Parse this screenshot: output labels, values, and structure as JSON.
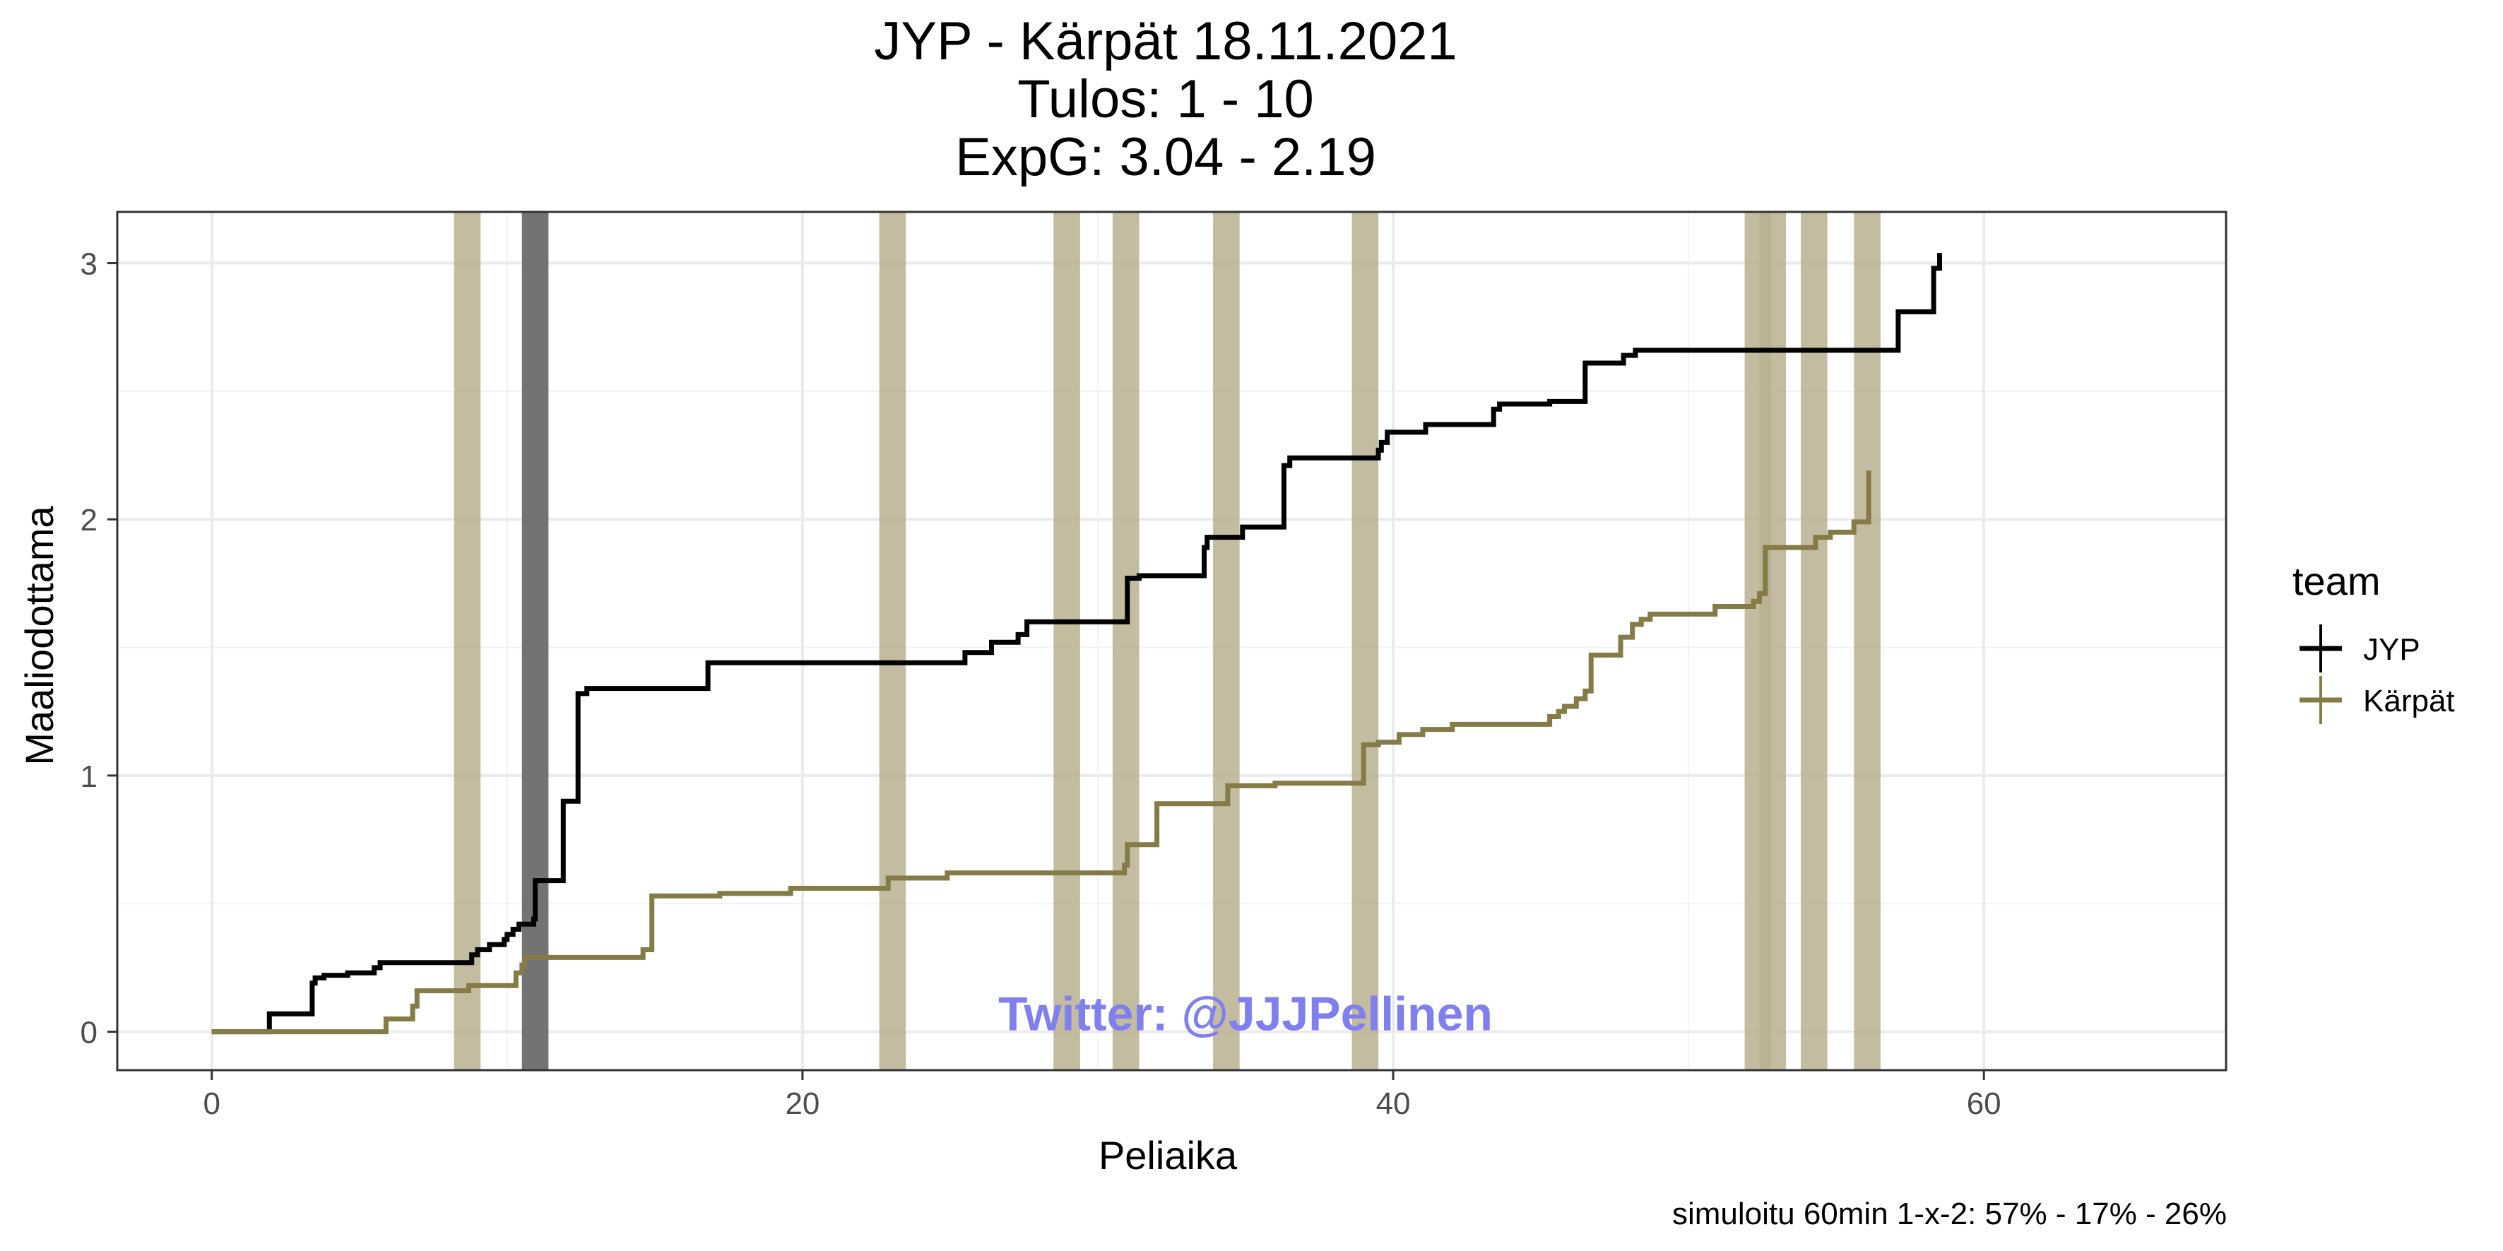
{
  "chart_data": {
    "type": "line",
    "step": true,
    "title": [
      "JYP - Kärpät 18.11.2021",
      "Tulos: 1 - 10",
      "ExpG: 3.04 - 2.19"
    ],
    "xlabel": "Peliaika",
    "ylabel": "Maaliodottama",
    "xlim": [
      -3.2,
      68.2
    ],
    "ylim": [
      -0.15,
      3.2
    ],
    "xticks": [
      0,
      20,
      40,
      60
    ],
    "yticks": [
      0,
      1,
      2,
      3
    ],
    "grid": true,
    "legend_title": "team",
    "legend_position": "right",
    "caption": "simuloitu 60min 1-x-2:  57% - 17% - 26%",
    "watermark": "Twitter: @JJJPellinen",
    "colors": {
      "JYP": "#000000",
      "Kärpät": "#857b46",
      "band_karpat": "#b8b08f",
      "band_jyp": "#6b6b6b",
      "watermark": "#7f7ff0"
    },
    "penalty_bands": [
      {
        "team": "Kärpät",
        "start": 8.2,
        "end": 9.1
      },
      {
        "team": "JYP",
        "start": 10.5,
        "end": 11.4
      },
      {
        "team": "Kärpät",
        "start": 22.6,
        "end": 23.5
      },
      {
        "team": "Kärpät",
        "start": 28.5,
        "end": 29.4
      },
      {
        "team": "Kärpät",
        "start": 30.5,
        "end": 31.4
      },
      {
        "team": "Kärpät",
        "start": 33.9,
        "end": 34.8
      },
      {
        "team": "Kärpät",
        "start": 38.6,
        "end": 39.5
      },
      {
        "team": "Kärpät",
        "start": 51.9,
        "end": 52.8
      },
      {
        "team": "Kärpät",
        "start": 52.4,
        "end": 53.3
      },
      {
        "team": "Kärpät",
        "start": 53.8,
        "end": 54.7
      },
      {
        "team": "Kärpät",
        "start": 55.6,
        "end": 56.5
      }
    ],
    "series": [
      {
        "name": "JYP",
        "points": [
          [
            0,
            0
          ],
          [
            1.95,
            0
          ],
          [
            1.95,
            0.07
          ],
          [
            3.4,
            0.07
          ],
          [
            3.4,
            0.19
          ],
          [
            3.5,
            0.19
          ],
          [
            3.5,
            0.21
          ],
          [
            3.8,
            0.21
          ],
          [
            3.8,
            0.22
          ],
          [
            4.6,
            0.22
          ],
          [
            4.6,
            0.23
          ],
          [
            5.5,
            0.23
          ],
          [
            5.5,
            0.25
          ],
          [
            5.7,
            0.25
          ],
          [
            5.7,
            0.27
          ],
          [
            8.8,
            0.27
          ],
          [
            8.8,
            0.3
          ],
          [
            9.0,
            0.3
          ],
          [
            9.0,
            0.32
          ],
          [
            9.4,
            0.32
          ],
          [
            9.4,
            0.34
          ],
          [
            9.9,
            0.34
          ],
          [
            9.9,
            0.36
          ],
          [
            10.0,
            0.36
          ],
          [
            10.0,
            0.38
          ],
          [
            10.2,
            0.38
          ],
          [
            10.2,
            0.4
          ],
          [
            10.4,
            0.4
          ],
          [
            10.4,
            0.42
          ],
          [
            10.9,
            0.42
          ],
          [
            10.9,
            0.44
          ],
          [
            10.95,
            0.44
          ],
          [
            10.95,
            0.59
          ],
          [
            11.9,
            0.59
          ],
          [
            11.9,
            0.9
          ],
          [
            12.4,
            0.9
          ],
          [
            12.4,
            1.32
          ],
          [
            12.7,
            1.32
          ],
          [
            12.7,
            1.34
          ],
          [
            16.8,
            1.34
          ],
          [
            16.8,
            1.44
          ],
          [
            25.5,
            1.44
          ],
          [
            25.5,
            1.48
          ],
          [
            26.4,
            1.48
          ],
          [
            26.4,
            1.52
          ],
          [
            27.3,
            1.52
          ],
          [
            27.3,
            1.55
          ],
          [
            27.6,
            1.55
          ],
          [
            27.6,
            1.6
          ],
          [
            31.0,
            1.6
          ],
          [
            31.0,
            1.77
          ],
          [
            31.4,
            1.77
          ],
          [
            31.4,
            1.78
          ],
          [
            33.6,
            1.78
          ],
          [
            33.6,
            1.89
          ],
          [
            33.7,
            1.89
          ],
          [
            33.7,
            1.93
          ],
          [
            34.9,
            1.93
          ],
          [
            34.9,
            1.97
          ],
          [
            36.3,
            1.97
          ],
          [
            36.3,
            2.21
          ],
          [
            36.5,
            2.21
          ],
          [
            36.5,
            2.24
          ],
          [
            39.5,
            2.24
          ],
          [
            39.5,
            2.27
          ],
          [
            39.6,
            2.27
          ],
          [
            39.6,
            2.3
          ],
          [
            39.8,
            2.3
          ],
          [
            39.8,
            2.34
          ],
          [
            41.1,
            2.34
          ],
          [
            41.1,
            2.37
          ],
          [
            43.4,
            2.37
          ],
          [
            43.4,
            2.43
          ],
          [
            43.6,
            2.43
          ],
          [
            43.6,
            2.45
          ],
          [
            45.3,
            2.45
          ],
          [
            45.3,
            2.46
          ],
          [
            46.5,
            2.46
          ],
          [
            46.5,
            2.61
          ],
          [
            47.8,
            2.61
          ],
          [
            47.8,
            2.64
          ],
          [
            48.2,
            2.64
          ],
          [
            48.2,
            2.66
          ],
          [
            57.1,
            2.66
          ],
          [
            57.1,
            2.81
          ],
          [
            58.3,
            2.81
          ],
          [
            58.3,
            2.98
          ],
          [
            58.5,
            2.98
          ],
          [
            58.5,
            3.04
          ]
        ]
      },
      {
        "name": "Kärpät",
        "points": [
          [
            0,
            0
          ],
          [
            5.9,
            0
          ],
          [
            5.9,
            0.05
          ],
          [
            6.8,
            0.05
          ],
          [
            6.8,
            0.1
          ],
          [
            6.95,
            0.1
          ],
          [
            6.95,
            0.16
          ],
          [
            8.7,
            0.16
          ],
          [
            8.7,
            0.18
          ],
          [
            10.3,
            0.18
          ],
          [
            10.3,
            0.23
          ],
          [
            10.5,
            0.23
          ],
          [
            10.5,
            0.26
          ],
          [
            10.6,
            0.26
          ],
          [
            10.6,
            0.29
          ],
          [
            14.6,
            0.29
          ],
          [
            14.6,
            0.32
          ],
          [
            14.9,
            0.32
          ],
          [
            14.9,
            0.53
          ],
          [
            17.2,
            0.53
          ],
          [
            17.2,
            0.54
          ],
          [
            19.6,
            0.54
          ],
          [
            19.6,
            0.56
          ],
          [
            22.9,
            0.56
          ],
          [
            22.9,
            0.6
          ],
          [
            24.9,
            0.6
          ],
          [
            24.9,
            0.62
          ],
          [
            30.9,
            0.62
          ],
          [
            30.9,
            0.65
          ],
          [
            31.0,
            0.65
          ],
          [
            31.0,
            0.73
          ],
          [
            32.0,
            0.73
          ],
          [
            32.0,
            0.89
          ],
          [
            34.4,
            0.89
          ],
          [
            34.4,
            0.96
          ],
          [
            36.0,
            0.96
          ],
          [
            36.0,
            0.97
          ],
          [
            39.0,
            0.97
          ],
          [
            39.0,
            1.12
          ],
          [
            39.5,
            1.12
          ],
          [
            39.5,
            1.13
          ],
          [
            40.2,
            1.13
          ],
          [
            40.2,
            1.16
          ],
          [
            41.0,
            1.16
          ],
          [
            41.0,
            1.18
          ],
          [
            42.0,
            1.18
          ],
          [
            42.0,
            1.2
          ],
          [
            45.3,
            1.2
          ],
          [
            45.3,
            1.23
          ],
          [
            45.6,
            1.23
          ],
          [
            45.6,
            1.25
          ],
          [
            45.8,
            1.25
          ],
          [
            45.8,
            1.27
          ],
          [
            46.2,
            1.27
          ],
          [
            46.2,
            1.3
          ],
          [
            46.5,
            1.3
          ],
          [
            46.5,
            1.33
          ],
          [
            46.7,
            1.33
          ],
          [
            46.7,
            1.47
          ],
          [
            47.7,
            1.47
          ],
          [
            47.7,
            1.54
          ],
          [
            48.1,
            1.54
          ],
          [
            48.1,
            1.59
          ],
          [
            48.4,
            1.59
          ],
          [
            48.4,
            1.61
          ],
          [
            48.7,
            1.61
          ],
          [
            48.7,
            1.63
          ],
          [
            50.9,
            1.63
          ],
          [
            50.9,
            1.66
          ],
          [
            52.2,
            1.66
          ],
          [
            52.2,
            1.68
          ],
          [
            52.4,
            1.68
          ],
          [
            52.4,
            1.71
          ],
          [
            52.6,
            1.71
          ],
          [
            52.6,
            1.89
          ],
          [
            54.3,
            1.89
          ],
          [
            54.3,
            1.93
          ],
          [
            54.8,
            1.93
          ],
          [
            54.8,
            1.95
          ],
          [
            55.6,
            1.95
          ],
          [
            55.6,
            1.99
          ],
          [
            56.1,
            1.99
          ],
          [
            56.1,
            2.19
          ]
        ]
      }
    ]
  }
}
